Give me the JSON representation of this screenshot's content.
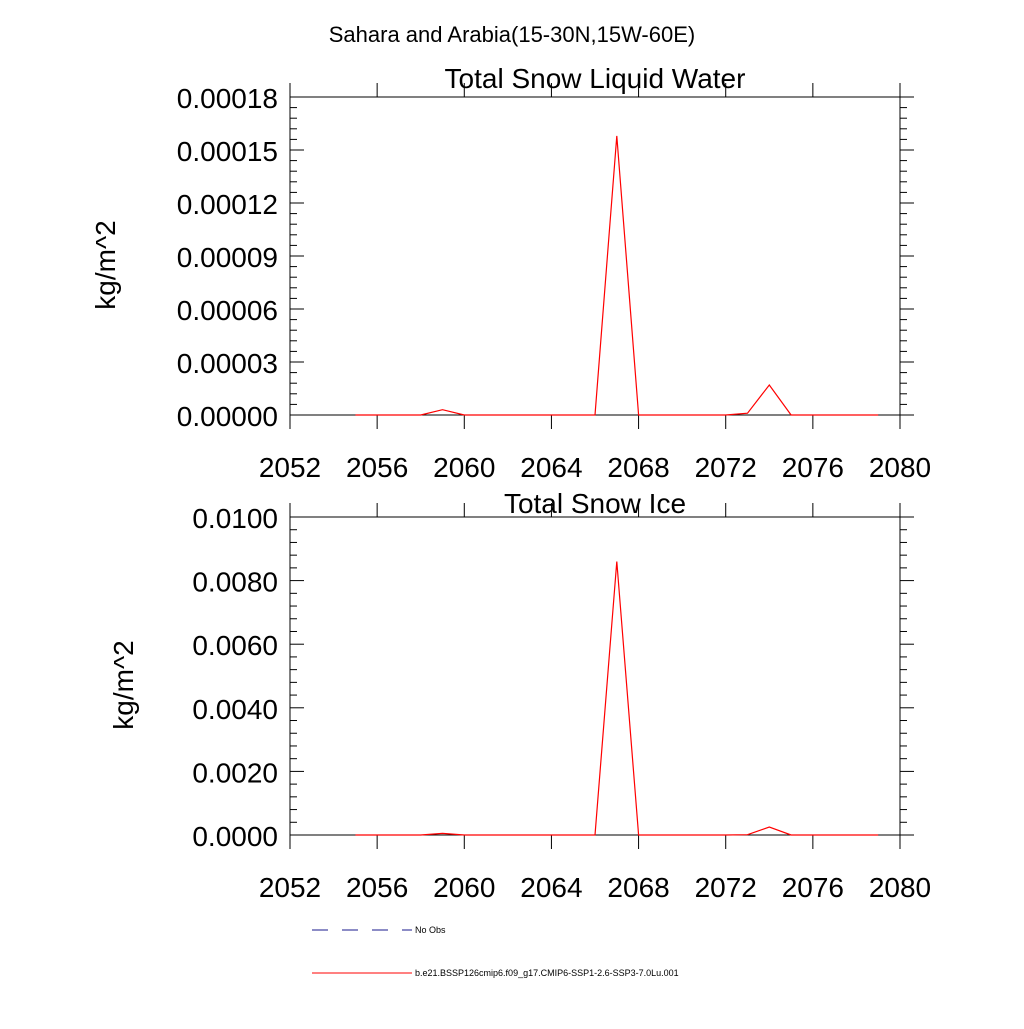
{
  "figure": {
    "title": "Sahara and Arabia(15-30N,15W-60E)"
  },
  "chart_data": [
    {
      "type": "line",
      "title": "Total Snow Liquid Water",
      "xlabel": "",
      "ylabel": "kg/m^2",
      "xlim": [
        2052,
        2080
      ],
      "ylim": [
        0,
        0.00018
      ],
      "x_ticks": [
        2052,
        2056,
        2060,
        2064,
        2068,
        2072,
        2076,
        2080
      ],
      "x_tick_labels": [
        "2052",
        "2056",
        "2060",
        "2064",
        "2068",
        "2072",
        "2076",
        "2080"
      ],
      "y_ticks": [
        0,
        3e-05,
        6e-05,
        9e-05,
        0.00012,
        0.00015,
        0.00018
      ],
      "y_tick_labels": [
        "0.00000",
        "0.00003",
        "0.00006",
        "0.00009",
        "0.00012",
        "0.00015",
        "0.00018"
      ],
      "grid": false,
      "series": [
        {
          "name": "b.e21.BSSP126cmip6.f09_g17.CMIP6-SSP1-2.6-SSP3-7.0Lu.001",
          "color": "#ff0000",
          "x": [
            2055,
            2056,
            2057,
            2058,
            2059,
            2060,
            2061,
            2062,
            2063,
            2064,
            2065,
            2066,
            2067,
            2068,
            2069,
            2070,
            2071,
            2072,
            2073,
            2074,
            2075,
            2076,
            2077,
            2078,
            2079
          ],
          "y": [
            0,
            0,
            0,
            0,
            3e-06,
            0,
            0,
            0,
            0,
            0,
            0,
            0,
            0.000158,
            0,
            0,
            0,
            0,
            0,
            1e-06,
            1.7e-05,
            0,
            0,
            0,
            0,
            0
          ]
        }
      ]
    },
    {
      "type": "line",
      "title": "Total Snow Ice",
      "xlabel": "",
      "ylabel": "kg/m^2",
      "xlim": [
        2052,
        2080
      ],
      "ylim": [
        0,
        0.01
      ],
      "x_ticks": [
        2052,
        2056,
        2060,
        2064,
        2068,
        2072,
        2076,
        2080
      ],
      "x_tick_labels": [
        "2052",
        "2056",
        "2060",
        "2064",
        "2068",
        "2072",
        "2076",
        "2080"
      ],
      "y_ticks": [
        0,
        0.002,
        0.004,
        0.006,
        0.008,
        0.01
      ],
      "y_tick_labels": [
        "0.0000",
        "0.0020",
        "0.0040",
        "0.0060",
        "0.0080",
        "0.0100"
      ],
      "grid": false,
      "series": [
        {
          "name": "b.e21.BSSP126cmip6.f09_g17.CMIP6-SSP1-2.6-SSP3-7.0Lu.001",
          "color": "#ff0000",
          "x": [
            2055,
            2056,
            2057,
            2058,
            2059,
            2060,
            2061,
            2062,
            2063,
            2064,
            2065,
            2066,
            2067,
            2068,
            2069,
            2070,
            2071,
            2072,
            2073,
            2074,
            2075,
            2076,
            2077,
            2078,
            2079
          ],
          "y": [
            0,
            0,
            0,
            0,
            5e-05,
            0,
            0,
            0,
            0,
            0,
            0,
            0,
            0.0086,
            0,
            0,
            0,
            0,
            0,
            1e-05,
            0.00025,
            0,
            0,
            0,
            0,
            0
          ]
        }
      ]
    }
  ],
  "legend": {
    "placement": "bottom",
    "entries": [
      {
        "label": "No Obs",
        "color": "#1a1a8c",
        "style": "dashed"
      },
      {
        "label": "b.e21.BSSP126cmip6.f09_g17.CMIP6-SSP1-2.6-SSP3-7.0Lu.001",
        "color": "#ff0000",
        "style": "solid"
      }
    ]
  }
}
